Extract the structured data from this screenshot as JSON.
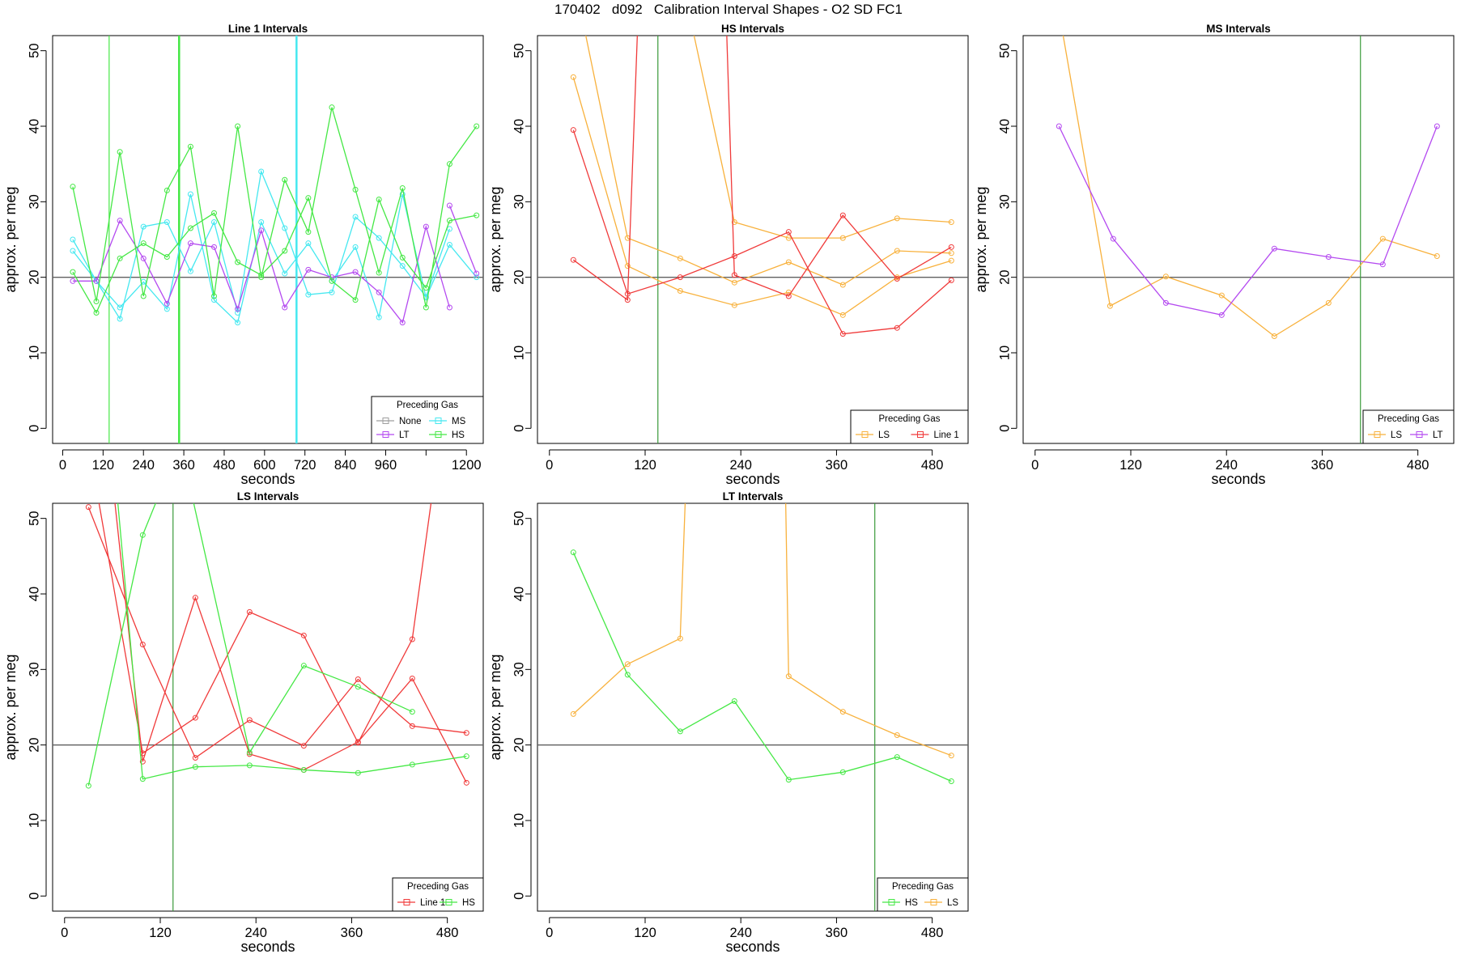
{
  "figure_title": "170402   d092   Calibration Interval Shapes - O2 SD FC1",
  "colors": {
    "None": "#9e9e9e",
    "LT": "#b449f0",
    "MS": "#45e8f0",
    "HS": "#45e845",
    "LS": "#f8b13c",
    "Line 1": "#f03a3a",
    "vline_dark_green": "#3a9a3a",
    "hline": "#606060"
  },
  "chart_data": [
    {
      "type": "line",
      "title": "Line 1 Intervals",
      "xlabel": "seconds",
      "ylabel": "approx. per meg",
      "xlim": [
        -30,
        1250
      ],
      "ylim": [
        -2,
        52
      ],
      "xticks": [
        0,
        120,
        240,
        360,
        480,
        600,
        720,
        840,
        960,
        1080,
        1200
      ],
      "xtick_labels": [
        "0",
        "120",
        "240",
        "360",
        "480",
        "600",
        "720",
        "840",
        "960",
        "",
        "1200"
      ],
      "yticks": [
        0,
        10,
        20,
        30,
        40,
        50
      ],
      "hline": 20,
      "vlines": [
        {
          "x": 138,
          "color": "HS",
          "width": 1.2
        },
        {
          "x": 346,
          "color": "HS",
          "width": 2.5
        },
        {
          "x": 695,
          "color": "MS",
          "width": 2.5
        }
      ],
      "legend": {
        "title": "Preceding Gas",
        "entries": [
          "None",
          "MS",
          "LT",
          "HS"
        ],
        "columns": 2
      },
      "series": [
        {
          "name": "MS",
          "x": [
            30,
            100,
            170,
            240,
            310,
            380,
            450,
            520,
            590,
            660,
            730,
            800,
            870,
            940,
            1010,
            1080,
            1150
          ],
          "values": [
            25,
            19.5,
            14.5,
            26.7,
            27.3,
            20.8,
            27.3,
            15.3,
            34,
            26.5,
            17.7,
            18,
            28,
            25.2,
            21.5,
            17.4,
            26.4
          ]
        },
        {
          "name": "MS",
          "x": [
            30,
            100,
            170,
            240,
            310,
            380,
            450,
            520,
            590,
            660,
            730,
            800,
            870,
            940,
            1010,
            1080,
            1150,
            1230
          ],
          "values": [
            23.5,
            19.5,
            16,
            19.4,
            15.8,
            31,
            17,
            14,
            27.3,
            20.5,
            24.5,
            19.5,
            24,
            14.7,
            31,
            17.3,
            24.3,
            20
          ]
        },
        {
          "name": "LT",
          "x": [
            30,
            100,
            170,
            240,
            310,
            380,
            450,
            520,
            590,
            660,
            730,
            800,
            870,
            940,
            1010,
            1080,
            1150
          ],
          "values": [
            19.5,
            19.5,
            27.5,
            22.5,
            16.5,
            24.5,
            24,
            15.8,
            26.2,
            16,
            21,
            20,
            20.7,
            18,
            14,
            26.7,
            16
          ]
        },
        {
          "name": "LT",
          "x": [
            1150,
            1230
          ],
          "values": [
            29.5,
            20.5
          ]
        },
        {
          "name": "HS",
          "x": [
            30,
            100,
            170,
            240,
            310,
            380,
            450,
            520,
            590,
            660,
            730,
            800,
            870,
            940,
            1010,
            1080,
            1150,
            1230
          ],
          "values": [
            32,
            16.8,
            36.6,
            17.5,
            31.5,
            37.3,
            17.5,
            40,
            20,
            32.9,
            26,
            42.5,
            31.6,
            20.6,
            31.8,
            16,
            35,
            40
          ]
        },
        {
          "name": "HS",
          "x": [
            30,
            100,
            170,
            240,
            310,
            380,
            450,
            520,
            590,
            660,
            730,
            800,
            870,
            940,
            1010,
            1080,
            1150,
            1230
          ],
          "values": [
            20.7,
            15.3,
            22.5,
            24.5,
            22.7,
            26.5,
            28.5,
            22,
            20.3,
            23.5,
            30.5,
            19.5,
            17,
            30.3,
            22.6,
            18.6,
            27.5,
            28.2
          ]
        }
      ]
    },
    {
      "type": "line",
      "title": "HS Intervals",
      "xlabel": "seconds",
      "ylabel": "approx. per meg",
      "xlim": [
        -15,
        525
      ],
      "ylim": [
        -2,
        52
      ],
      "xticks": [
        0,
        120,
        240,
        360,
        480
      ],
      "xtick_labels": [
        "0",
        "120",
        "240",
        "360",
        "480"
      ],
      "yticks": [
        0,
        10,
        20,
        30,
        40,
        50
      ],
      "hline": 20,
      "vlines": [
        {
          "x": 136,
          "color": "vline_dark_green",
          "width": 1.2
        }
      ],
      "legend": {
        "title": "Preceding Gas",
        "entries": [
          "LS",
          "Line 1"
        ],
        "columns": 2
      },
      "series": [
        {
          "name": "LS",
          "x": [
            30,
            98,
            164,
            232,
            300,
            368,
            436,
            504
          ],
          "values": [
            46.5,
            21.5,
            18.2,
            16.3,
            18,
            15,
            20,
            22.2
          ]
        },
        {
          "name": "LS",
          "x": [
            30,
            98,
            164,
            232,
            300,
            368,
            436,
            504
          ],
          "values": [
            60,
            25.2,
            22.5,
            19.3,
            22,
            19,
            23.5,
            23.2
          ]
        },
        {
          "name": "LS",
          "x": [
            165,
            232,
            300,
            368,
            436,
            504
          ],
          "values": [
            60,
            27.3,
            25.2,
            25.2,
            27.8,
            27.3
          ]
        },
        {
          "name": "Line 1",
          "x": [
            30,
            98,
            164,
            232,
            300,
            368,
            436,
            504
          ],
          "values": [
            39.5,
            17.8,
            20,
            22.8,
            26,
            12.5,
            13.3,
            19.6
          ]
        },
        {
          "name": "Line 1",
          "x": [
            30,
            98,
            113
          ],
          "values": [
            22.3,
            17,
            60
          ]
        },
        {
          "name": "Line 1",
          "x": [
            220,
            232,
            300,
            368,
            436,
            504
          ],
          "values": [
            60,
            20.3,
            17.5,
            28.2,
            19.8,
            24
          ]
        }
      ]
    },
    {
      "type": "line",
      "title": "MS Intervals",
      "xlabel": "seconds",
      "ylabel": "approx. per meg",
      "xlim": [
        -15,
        525
      ],
      "ylim": [
        -2,
        52
      ],
      "xticks": [
        0,
        120,
        240,
        360,
        480
      ],
      "xtick_labels": [
        "0",
        "120",
        "240",
        "360",
        "480"
      ],
      "yticks": [
        0,
        10,
        20,
        30,
        40,
        50
      ],
      "hline": 20,
      "vlines": [
        {
          "x": 408,
          "color": "vline_dark_green",
          "width": 1.2
        }
      ],
      "legend": {
        "title": "Preceding Gas",
        "entries": [
          "LS",
          "LT"
        ],
        "columns": 2
      },
      "series": [
        {
          "name": "LS",
          "x": [
            22,
            94,
            164,
            234,
            300,
            368,
            436,
            504
          ],
          "values": [
            60,
            16.2,
            20.1,
            17.6,
            12.2,
            16.6,
            25.1,
            22.8
          ]
        },
        {
          "name": "LT",
          "x": [
            30,
            98,
            164,
            234,
            300,
            368,
            436,
            504
          ],
          "values": [
            40,
            25.1,
            16.6,
            15,
            23.8,
            22.7,
            21.7,
            40
          ]
        }
      ]
    },
    {
      "type": "line",
      "title": "LS Intervals",
      "xlabel": "seconds",
      "ylabel": "approx. per meg",
      "xlim": [
        -15,
        525
      ],
      "ylim": [
        -2,
        52
      ],
      "xticks": [
        0,
        120,
        240,
        360,
        480
      ],
      "xtick_labels": [
        "0",
        "120",
        "240",
        "360",
        "480"
      ],
      "yticks": [
        0,
        10,
        20,
        30,
        40,
        50
      ],
      "hline": 20,
      "vlines": [
        {
          "x": 136,
          "color": "vline_dark_green",
          "width": 1.2
        }
      ],
      "legend": {
        "title": "Preceding Gas",
        "entries": [
          "Line 1",
          "HS"
        ],
        "columns": 2
      },
      "series": [
        {
          "name": "Line 1",
          "x": [
            30,
            98,
            164,
            232,
            300,
            368,
            436,
            504
          ],
          "values": [
            51.5,
            33.3,
            18.3,
            23.3,
            19.9,
            28.7,
            22.5,
            21.6
          ]
        },
        {
          "name": "Line 1",
          "x": [
            55,
            98,
            164,
            232,
            300,
            368,
            436,
            504
          ],
          "values": [
            60,
            17.8,
            39.5,
            18.8,
            16.7,
            20.4,
            28.8,
            15
          ]
        },
        {
          "name": "Line 1",
          "x": [
            30,
            98,
            164,
            232,
            300,
            368,
            436,
            470
          ],
          "values": [
            60,
            18.9,
            23.6,
            37.6,
            34.5,
            20.3,
            34,
            60
          ]
        },
        {
          "name": "HS",
          "x": [
            30,
            98,
            145
          ],
          "values": [
            14.6,
            47.8,
            60
          ]
        },
        {
          "name": "HS",
          "x": [
            60,
            98,
            164,
            232,
            300,
            368,
            436,
            504
          ],
          "values": [
            60,
            15.5,
            17.1,
            17.3,
            16.7,
            16.3,
            17.4,
            18.5
          ]
        },
        {
          "name": "HS",
          "x": [
            145,
            232,
            300,
            368,
            436
          ],
          "values": [
            60,
            19,
            30.5,
            27.7,
            24.4
          ]
        }
      ]
    },
    {
      "type": "line",
      "title": "LT Intervals",
      "xlabel": "seconds",
      "ylabel": "approx. per meg",
      "xlim": [
        -15,
        525
      ],
      "ylim": [
        -2,
        52
      ],
      "xticks": [
        0,
        120,
        240,
        360,
        480
      ],
      "xtick_labels": [
        "0",
        "120",
        "240",
        "360",
        "480"
      ],
      "yticks": [
        0,
        10,
        20,
        30,
        40,
        50
      ],
      "hline": 20,
      "vlines": [
        {
          "x": 408,
          "color": "vline_dark_green",
          "width": 1.2
        }
      ],
      "legend": {
        "title": "Preceding Gas",
        "entries": [
          "HS",
          "LS"
        ],
        "columns": 2
      },
      "series": [
        {
          "name": "HS",
          "x": [
            30,
            98,
            164,
            232,
            300,
            368,
            436,
            504
          ],
          "values": [
            45.5,
            29.3,
            21.8,
            25.8,
            15.4,
            16.4,
            18.4,
            15.2
          ]
        },
        {
          "name": "LS",
          "x": [
            30,
            98,
            164,
            173
          ],
          "values": [
            24.1,
            30.7,
            34.1,
            60
          ]
        },
        {
          "name": "LS",
          "x": [
            295,
            300,
            368,
            436,
            504
          ],
          "values": [
            60,
            29.1,
            24.4,
            21.3,
            18.6
          ]
        }
      ]
    }
  ]
}
